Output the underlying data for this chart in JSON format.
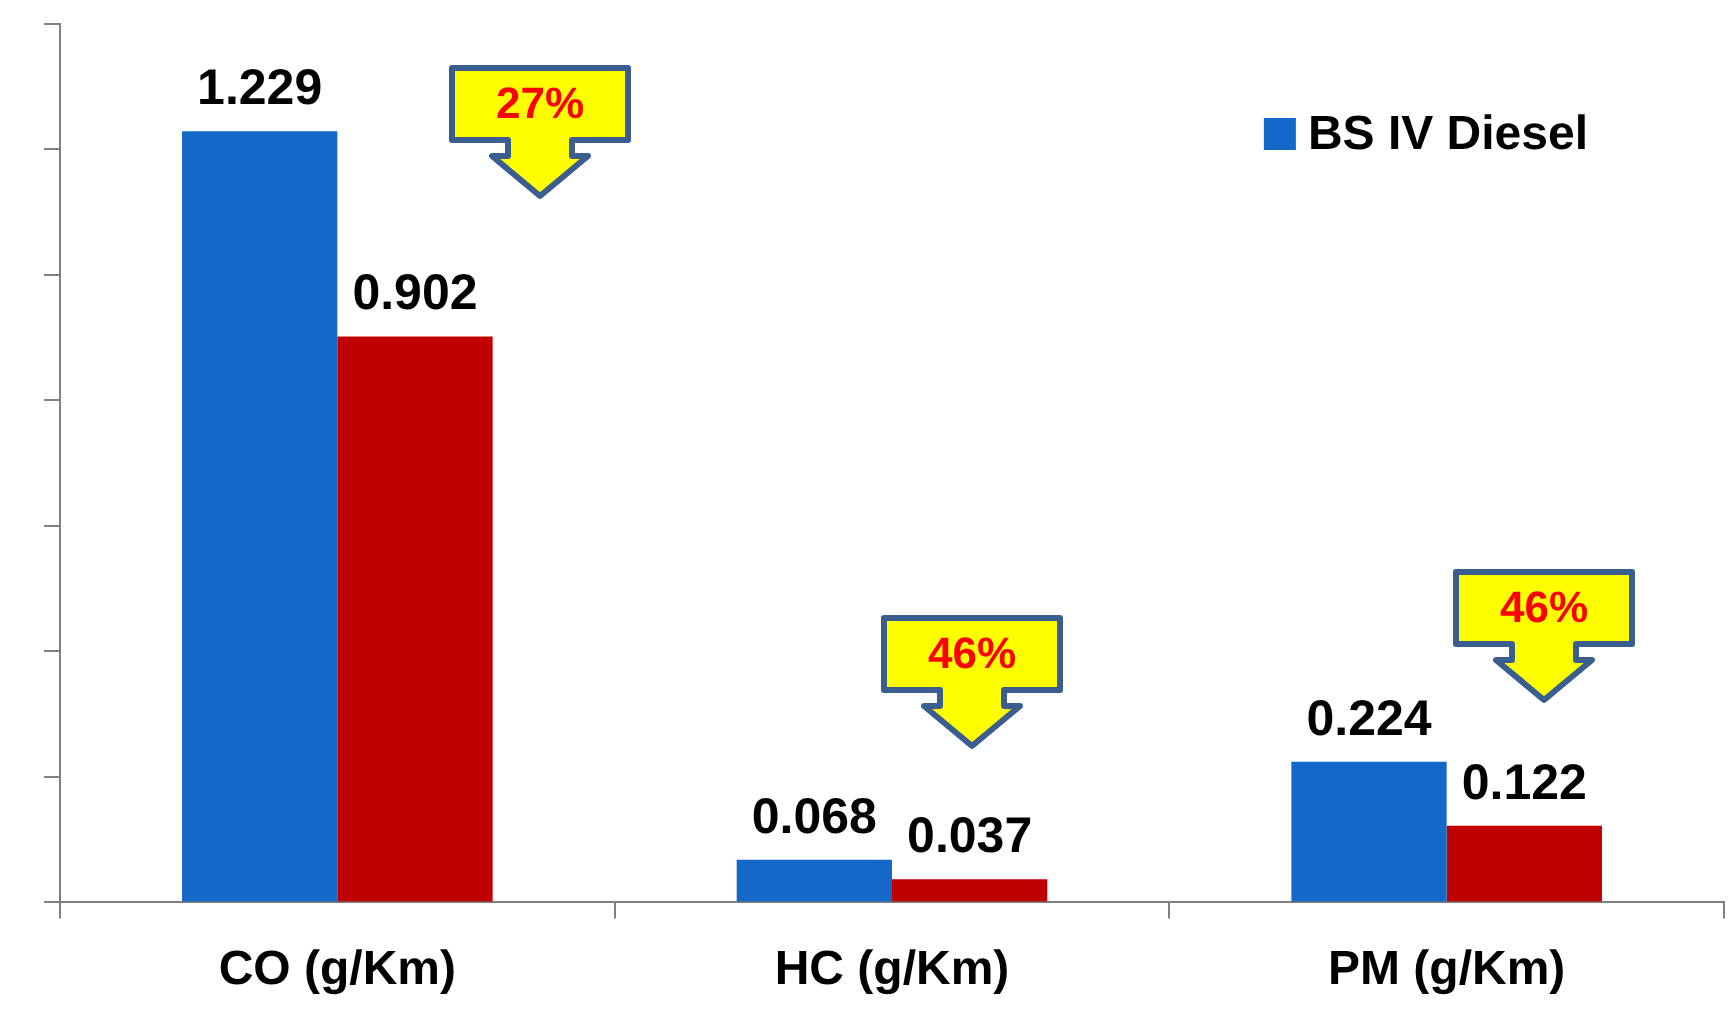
{
  "chart_data": {
    "type": "bar",
    "categories": [
      "CO (g/Km)",
      "HC (g/Km)",
      "PM (g/Km)"
    ],
    "series": [
      {
        "name": "BS IV Diesel",
        "color": "#1469c8",
        "values": [
          1.229,
          0.068,
          0.224
        ]
      },
      {
        "color": "#c00000",
        "values": [
          0.902,
          0.037,
          0.122
        ]
      }
    ],
    "ylim": [
      0,
      1.4
    ],
    "yticks": [
      {
        "value": 0,
        "label": null
      },
      {
        "value": 0.2,
        "label": null
      },
      {
        "value": 0.4,
        "label": null
      },
      {
        "value": 0.6,
        "label": null
      },
      {
        "value": 0.8,
        "label": null
      },
      {
        "value": 1,
        "label": null
      },
      {
        "value": 1.2,
        "label": null
      },
      {
        "value": 1.4,
        "label": null
      }
    ],
    "tick_labels": "x",
    "grid": false,
    "legend": "top right",
    "data_labels": true,
    "annotations": [
      "27%",
      "46%",
      "46%"
    ]
  }
}
